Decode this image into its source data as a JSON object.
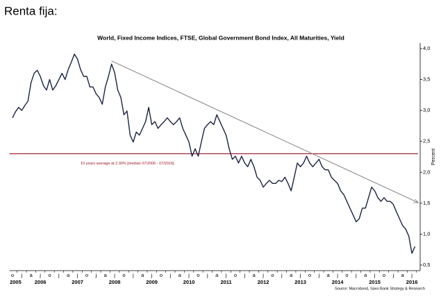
{
  "page_title": "Renta fija:",
  "chart_data": {
    "type": "line",
    "title": "World, Fixed Income Indices, FTSE, Global Government Bond Index, All Maturities, Yield",
    "y_axis_label": "Percent",
    "source": "Source: Macrobond, Saxo Bank Strategy & Research",
    "color": "#1a2340",
    "grid": false,
    "x": [
      "2005-10",
      "2005-11",
      "2005-12",
      "2006-01",
      "2006-02",
      "2006-03",
      "2006-04",
      "2006-05",
      "2006-06",
      "2006-07",
      "2006-08",
      "2006-09",
      "2006-10",
      "2006-11",
      "2006-12",
      "2007-01",
      "2007-02",
      "2007-03",
      "2007-04",
      "2007-05",
      "2007-06",
      "2007-07",
      "2007-08",
      "2007-09",
      "2007-10",
      "2007-11",
      "2007-12",
      "2008-01",
      "2008-02",
      "2008-03",
      "2008-04",
      "2008-05",
      "2008-06",
      "2008-07",
      "2008-08",
      "2008-09",
      "2008-10",
      "2008-11",
      "2008-12",
      "2009-01",
      "2009-02",
      "2009-03",
      "2009-04",
      "2009-05",
      "2009-06",
      "2009-07",
      "2009-08",
      "2009-09",
      "2009-10",
      "2009-11",
      "2009-12",
      "2010-01",
      "2010-02",
      "2010-03",
      "2010-04",
      "2010-05",
      "2010-06",
      "2010-07",
      "2010-08",
      "2010-09",
      "2010-10",
      "2010-11",
      "2010-12",
      "2011-01",
      "2011-02",
      "2011-03",
      "2011-04",
      "2011-05",
      "2011-06",
      "2011-07",
      "2011-08",
      "2011-09",
      "2011-10",
      "2011-11",
      "2011-12",
      "2012-01",
      "2012-02",
      "2012-03",
      "2012-04",
      "2012-05",
      "2012-06",
      "2012-07",
      "2012-08",
      "2012-09",
      "2012-10",
      "2012-11",
      "2012-12",
      "2013-01",
      "2013-02",
      "2013-03",
      "2013-04",
      "2013-05",
      "2013-06",
      "2013-07",
      "2013-08",
      "2013-09",
      "2013-10",
      "2013-11",
      "2013-12",
      "2014-01",
      "2014-02",
      "2014-03",
      "2014-04",
      "2014-05",
      "2014-06",
      "2014-07",
      "2014-08",
      "2014-09",
      "2014-10",
      "2014-11",
      "2014-12",
      "2015-01",
      "2015-02",
      "2015-03",
      "2015-04",
      "2015-05",
      "2015-06",
      "2015-07",
      "2015-08",
      "2015-09",
      "2015-10",
      "2015-11",
      "2015-12",
      "2016-01",
      "2016-02",
      "2016-03",
      "2016-04",
      "2016-05",
      "2016-06",
      "2016-07",
      "2016-08"
    ],
    "values": [
      2.88,
      2.98,
      3.05,
      3.0,
      3.08,
      3.15,
      3.45,
      3.6,
      3.65,
      3.55,
      3.4,
      3.33,
      3.5,
      3.33,
      3.4,
      3.5,
      3.6,
      3.5,
      3.66,
      3.78,
      3.91,
      3.83,
      3.66,
      3.55,
      3.55,
      3.38,
      3.38,
      3.27,
      3.21,
      3.1,
      3.38,
      3.55,
      3.75,
      3.61,
      3.33,
      3.21,
      2.93,
      2.99,
      2.6,
      2.49,
      2.65,
      2.6,
      2.71,
      2.82,
      3.05,
      2.77,
      2.82,
      2.71,
      2.77,
      2.82,
      2.88,
      2.82,
      2.77,
      2.82,
      2.88,
      2.71,
      2.6,
      2.49,
      2.26,
      2.38,
      2.26,
      2.49,
      2.71,
      2.77,
      2.82,
      2.77,
      2.93,
      2.82,
      2.71,
      2.6,
      2.38,
      2.21,
      2.26,
      2.15,
      2.26,
      2.15,
      2.09,
      2.21,
      2.09,
      1.92,
      1.87,
      1.76,
      1.82,
      1.87,
      1.82,
      1.82,
      1.87,
      1.85,
      1.92,
      1.82,
      1.7,
      1.92,
      2.15,
      2.09,
      2.15,
      2.26,
      2.15,
      2.09,
      2.15,
      2.21,
      2.09,
      2.04,
      2.04,
      1.92,
      1.87,
      1.82,
      1.7,
      1.64,
      1.53,
      1.42,
      1.31,
      1.2,
      1.25,
      1.42,
      1.42,
      1.59,
      1.76,
      1.7,
      1.59,
      1.53,
      1.59,
      1.53,
      1.53,
      1.48,
      1.36,
      1.25,
      1.14,
      1.08,
      0.97,
      0.69,
      0.8
    ],
    "xlim": [
      "2005-09",
      "2016-09"
    ],
    "ylim": [
      0.41,
      4.09
    ],
    "yticks": [
      {
        "value": 4,
        "label": "4,0"
      },
      {
        "value": 3.5,
        "label": "3,5"
      },
      {
        "value": 3,
        "label": "3,0"
      },
      {
        "value": 2.5,
        "label": "2,5"
      },
      {
        "value": 2,
        "label": "2,0"
      },
      {
        "value": 1.5,
        "label": "1,5"
      },
      {
        "value": 1,
        "label": "1,0"
      },
      {
        "value": 0.5,
        "label": "0,5"
      }
    ],
    "xticks": [
      {
        "value": "2005-10",
        "label": "o"
      },
      {
        "value": "2006-01",
        "label": "j"
      },
      {
        "value": "2006-04",
        "label": "a"
      },
      {
        "value": "2006-07",
        "label": "j"
      },
      {
        "value": "2006-10",
        "label": "o"
      },
      {
        "value": "2007-01",
        "label": "j"
      },
      {
        "value": "2007-04",
        "label": "a"
      },
      {
        "value": "2007-07",
        "label": "j"
      },
      {
        "value": "2007-10",
        "label": "o"
      },
      {
        "value": "2008-01",
        "label": "j"
      },
      {
        "value": "2008-04",
        "label": "a"
      },
      {
        "value": "2008-07",
        "label": "j"
      },
      {
        "value": "2008-10",
        "label": "o"
      },
      {
        "value": "2009-01",
        "label": "j"
      },
      {
        "value": "2009-04",
        "label": "a"
      },
      {
        "value": "2009-07",
        "label": "j"
      },
      {
        "value": "2009-10",
        "label": "o"
      },
      {
        "value": "2010-01",
        "label": "j"
      },
      {
        "value": "2010-04",
        "label": "a"
      },
      {
        "value": "2010-07",
        "label": "j"
      },
      {
        "value": "2010-10",
        "label": "o"
      },
      {
        "value": "2011-01",
        "label": "j"
      },
      {
        "value": "2011-04",
        "label": "a"
      },
      {
        "value": "2011-07",
        "label": "j"
      },
      {
        "value": "2011-10",
        "label": "o"
      },
      {
        "value": "2012-01",
        "label": "j"
      },
      {
        "value": "2012-04",
        "label": "a"
      },
      {
        "value": "2012-07",
        "label": "j"
      },
      {
        "value": "2012-10",
        "label": "o"
      },
      {
        "value": "2013-01",
        "label": "j"
      },
      {
        "value": "2013-04",
        "label": "a"
      },
      {
        "value": "2013-07",
        "label": "j"
      },
      {
        "value": "2013-10",
        "label": "o"
      },
      {
        "value": "2014-01",
        "label": "j"
      },
      {
        "value": "2014-04",
        "label": "a"
      },
      {
        "value": "2014-07",
        "label": "j"
      },
      {
        "value": "2014-10",
        "label": "o"
      },
      {
        "value": "2015-01",
        "label": "j"
      },
      {
        "value": "2015-04",
        "label": "a"
      },
      {
        "value": "2015-07",
        "label": "j"
      },
      {
        "value": "2015-10",
        "label": "o"
      },
      {
        "value": "2016-01",
        "label": "j"
      },
      {
        "value": "2016-04",
        "label": "a"
      },
      {
        "value": "2016-07",
        "label": "j"
      }
    ],
    "year_labels": [
      {
        "value": "2005-11",
        "label": "2005"
      },
      {
        "value": "2006-07",
        "label": "2006"
      },
      {
        "value": "2007-07",
        "label": "2007"
      },
      {
        "value": "2008-07",
        "label": "2008"
      },
      {
        "value": "2009-07",
        "label": "2009"
      },
      {
        "value": "2010-07",
        "label": "2010"
      },
      {
        "value": "2011-07",
        "label": "2011"
      },
      {
        "value": "2012-07",
        "label": "2012"
      },
      {
        "value": "2013-07",
        "label": "2013"
      },
      {
        "value": "2014-07",
        "label": "2014"
      },
      {
        "value": "2015-07",
        "label": "2015"
      },
      {
        "value": "2016-07",
        "label": "2016"
      }
    ],
    "average_line": {
      "value": 2.3,
      "label": "10 years average at 2.30% [median 07/2006 - 07/2016]",
      "color": "#a0172a"
    },
    "trend_line": {
      "x": [
        "2008-06",
        "2016-09"
      ],
      "values": [
        3.8,
        1.51
      ],
      "color": "#808080"
    }
  }
}
